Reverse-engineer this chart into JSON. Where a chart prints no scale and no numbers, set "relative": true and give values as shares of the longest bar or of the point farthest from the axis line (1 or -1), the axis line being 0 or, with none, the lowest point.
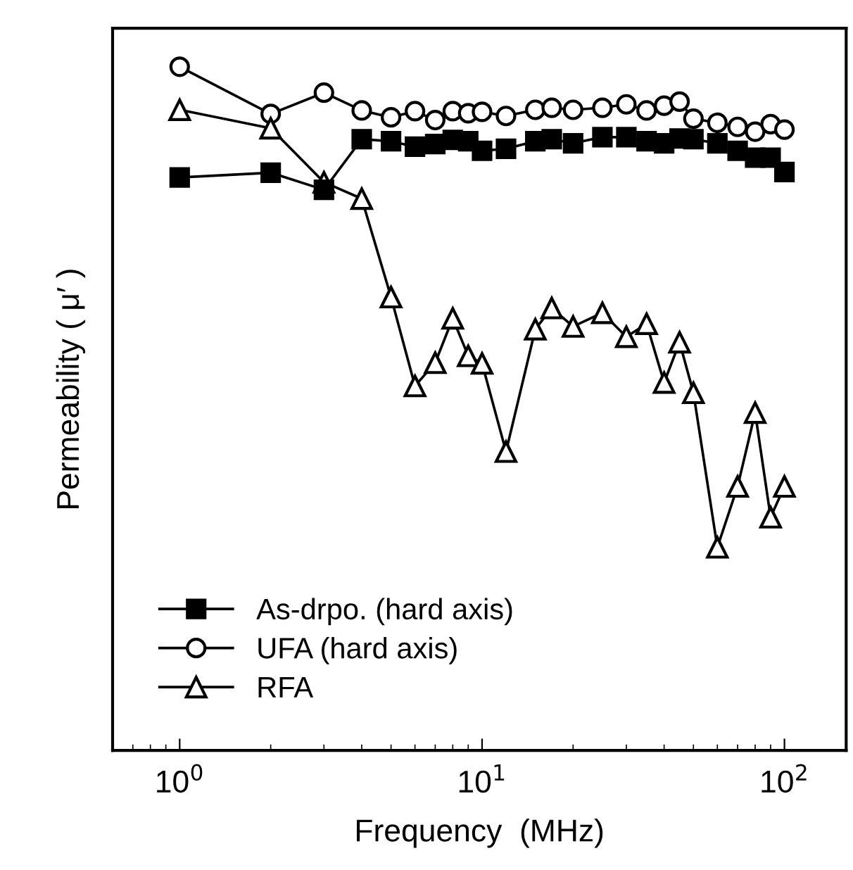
{
  "chart_data": {
    "type": "line",
    "relative": true,
    "log": "x",
    "xlabel": "Frequency  (MHz)",
    "ylabel": "Permeability ( μ′ )",
    "x": [
      1,
      2,
      3,
      4,
      5,
      6,
      7,
      8,
      9,
      10,
      12,
      15,
      17,
      20,
      25,
      30,
      35,
      40,
      45,
      50,
      60,
      70,
      80,
      90,
      100
    ],
    "xlim": [
      0.6,
      160
    ],
    "xticks": [
      {
        "value": 1,
        "label": "10$^{0}$"
      },
      {
        "value": 10,
        "label": "10$^{1}$"
      },
      {
        "value": 100,
        "label": "10$^{2}$"
      }
    ],
    "tick_labels": "x",
    "grid": false,
    "legend": "bottom left",
    "line_style": "solid",
    "series": [
      {
        "name": "As-drpo. (hard axis)",
        "color": "#000000",
        "marker": "square",
        "values": [
          0.838,
          0.845,
          0.82,
          0.894,
          0.891,
          0.883,
          0.887,
          0.893,
          0.891,
          0.877,
          0.88,
          0.891,
          0.894,
          0.888,
          0.897,
          0.897,
          0.891,
          0.888,
          0.895,
          0.894,
          0.888,
          0.877,
          0.867,
          0.867,
          0.846
        ]
      },
      {
        "name": "UFA (hard axis)",
        "color": "#000000",
        "marker": "circle",
        "values": [
          1.0,
          0.931,
          0.962,
          0.936,
          0.926,
          0.935,
          0.922,
          0.935,
          0.932,
          0.934,
          0.928,
          0.937,
          0.94,
          0.937,
          0.94,
          0.945,
          0.936,
          0.943,
          0.949,
          0.924,
          0.918,
          0.912,
          0.905,
          0.916,
          0.908
        ]
      },
      {
        "name": "RFA",
        "color": "#000000",
        "marker": "triangle",
        "values": [
          0.937,
          0.91,
          0.831,
          0.807,
          0.663,
          0.533,
          0.567,
          0.632,
          0.577,
          0.566,
          0.437,
          0.616,
          0.647,
          0.62,
          0.64,
          0.605,
          0.624,
          0.538,
          0.597,
          0.523,
          0.297,
          0.386,
          0.494,
          0.341,
          0.386
        ]
      }
    ]
  }
}
